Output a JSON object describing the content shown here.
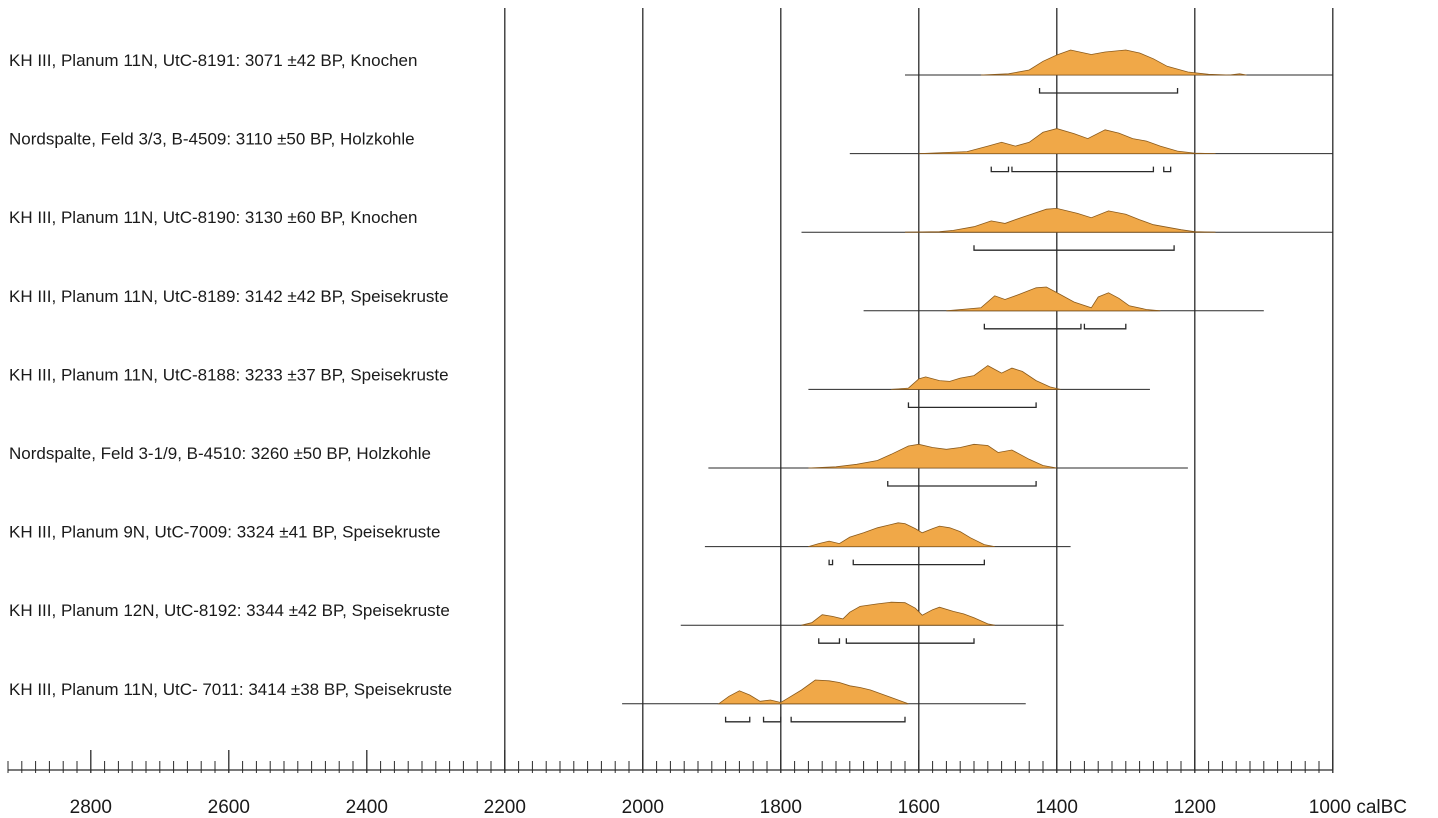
{
  "chart_data": {
    "type": "area",
    "x_axis": {
      "unit": "calBC",
      "range": [
        2920,
        1000
      ],
      "major_ticks": [
        2800,
        2600,
        2400,
        2200,
        2000,
        1800,
        1600,
        1400,
        1200,
        1000
      ],
      "tick_labels": [
        "2800",
        "2600",
        "2400",
        "2200",
        "2000",
        "1800",
        "1600",
        "1400",
        "1200",
        "1000 calBC"
      ],
      "gridlines": [
        2200,
        2000,
        1800,
        1600,
        1400,
        1200,
        1000
      ]
    },
    "fill_color": "#f0a848",
    "line_color": "#2a2a2a",
    "samples": [
      {
        "label": "KH III, Planum 11N, UtC-8191: 3071 ±42 BP, Knochen",
        "baseline_range": [
          1620,
          1000
        ],
        "density": [
          [
            1510,
            0
          ],
          [
            1470,
            0.05
          ],
          [
            1440,
            0.2
          ],
          [
            1420,
            0.55
          ],
          [
            1400,
            0.8
          ],
          [
            1380,
            1
          ],
          [
            1350,
            0.82
          ],
          [
            1330,
            0.92
          ],
          [
            1300,
            1
          ],
          [
            1280,
            0.88
          ],
          [
            1260,
            0.65
          ],
          [
            1240,
            0.35
          ],
          [
            1210,
            0.12
          ],
          [
            1180,
            0.03
          ],
          [
            1150,
            0
          ],
          [
            1135,
            0.05
          ],
          [
            1125,
            0
          ]
        ],
        "range_bars": [
          [
            1425,
            1225
          ]
        ]
      },
      {
        "label": "Nordspalte, Feld 3/3, B-4509: 3110 ±50 BP, Holzkohle",
        "baseline_range": [
          1700,
          1000
        ],
        "density": [
          [
            1600,
            0
          ],
          [
            1530,
            0.08
          ],
          [
            1500,
            0.3
          ],
          [
            1480,
            0.45
          ],
          [
            1460,
            0.3
          ],
          [
            1440,
            0.45
          ],
          [
            1420,
            0.85
          ],
          [
            1400,
            1
          ],
          [
            1375,
            0.8
          ],
          [
            1355,
            0.6
          ],
          [
            1330,
            0.95
          ],
          [
            1310,
            0.82
          ],
          [
            1290,
            0.6
          ],
          [
            1270,
            0.5
          ],
          [
            1250,
            0.3
          ],
          [
            1225,
            0.1
          ],
          [
            1200,
            0.02
          ],
          [
            1170,
            0
          ]
        ],
        "range_bars": [
          [
            1495,
            1470
          ],
          [
            1465,
            1260
          ],
          [
            1245,
            1235
          ]
        ]
      },
      {
        "label": "KH III, Planum 11N, UtC-8190: 3130 ±60 BP, Knochen",
        "baseline_range": [
          1770,
          1000
        ],
        "density": [
          [
            1620,
            0
          ],
          [
            1570,
            0.02
          ],
          [
            1550,
            0.07
          ],
          [
            1520,
            0.22
          ],
          [
            1495,
            0.45
          ],
          [
            1475,
            0.35
          ],
          [
            1450,
            0.6
          ],
          [
            1415,
            0.92
          ],
          [
            1400,
            0.95
          ],
          [
            1370,
            0.75
          ],
          [
            1350,
            0.58
          ],
          [
            1325,
            0.85
          ],
          [
            1300,
            0.72
          ],
          [
            1280,
            0.5
          ],
          [
            1260,
            0.3
          ],
          [
            1240,
            0.2
          ],
          [
            1220,
            0.1
          ],
          [
            1200,
            0.02
          ],
          [
            1170,
            0
          ]
        ],
        "range_bars": [
          [
            1520,
            1230
          ]
        ]
      },
      {
        "label": "KH III, Planum 11N, UtC-8189: 3142 ±42 BP, Speisekruste",
        "baseline_range": [
          1680,
          1100
        ],
        "density": [
          [
            1560,
            0
          ],
          [
            1510,
            0.12
          ],
          [
            1490,
            0.6
          ],
          [
            1475,
            0.45
          ],
          [
            1455,
            0.65
          ],
          [
            1430,
            0.92
          ],
          [
            1415,
            0.95
          ],
          [
            1395,
            0.65
          ],
          [
            1375,
            0.35
          ],
          [
            1350,
            0.12
          ],
          [
            1340,
            0.55
          ],
          [
            1325,
            0.72
          ],
          [
            1310,
            0.5
          ],
          [
            1295,
            0.2
          ],
          [
            1270,
            0.05
          ],
          [
            1250,
            0
          ]
        ],
        "range_bars": [
          [
            1505,
            1365
          ],
          [
            1360,
            1300
          ]
        ]
      },
      {
        "label": "KH III, Planum 11N, UtC-8188: 3233 ±37 BP, Speisekruste",
        "baseline_range": [
          1760,
          1265
        ],
        "density": [
          [
            1640,
            0
          ],
          [
            1615,
            0.05
          ],
          [
            1600,
            0.42
          ],
          [
            1590,
            0.5
          ],
          [
            1570,
            0.35
          ],
          [
            1555,
            0.32
          ],
          [
            1540,
            0.45
          ],
          [
            1520,
            0.55
          ],
          [
            1500,
            0.95
          ],
          [
            1490,
            0.8
          ],
          [
            1480,
            0.65
          ],
          [
            1465,
            0.85
          ],
          [
            1450,
            0.72
          ],
          [
            1430,
            0.35
          ],
          [
            1410,
            0.1
          ],
          [
            1395,
            0
          ]
        ],
        "range_bars": [
          [
            1615,
            1430
          ]
        ]
      },
      {
        "label": "Nordspalte, Feld 3-1/9, B-4510: 3260 ±50 BP, Holzkohle",
        "baseline_range": [
          1905,
          1210
        ],
        "density": [
          [
            1760,
            0
          ],
          [
            1720,
            0.05
          ],
          [
            1690,
            0.15
          ],
          [
            1660,
            0.3
          ],
          [
            1640,
            0.55
          ],
          [
            1615,
            0.88
          ],
          [
            1600,
            0.95
          ],
          [
            1580,
            0.82
          ],
          [
            1560,
            0.75
          ],
          [
            1540,
            0.82
          ],
          [
            1520,
            0.95
          ],
          [
            1500,
            0.9
          ],
          [
            1485,
            0.62
          ],
          [
            1465,
            0.72
          ],
          [
            1440,
            0.35
          ],
          [
            1420,
            0.1
          ],
          [
            1400,
            0
          ]
        ],
        "range_bars": [
          [
            1645,
            1430
          ]
        ]
      },
      {
        "label": "KH III, Planum 9N, UtC-7009: 3324 ±41 BP, Speisekruste",
        "baseline_range": [
          1910,
          1380
        ],
        "density": [
          [
            1760,
            0
          ],
          [
            1745,
            0.12
          ],
          [
            1730,
            0.22
          ],
          [
            1715,
            0.12
          ],
          [
            1700,
            0.38
          ],
          [
            1680,
            0.55
          ],
          [
            1660,
            0.75
          ],
          [
            1630,
            0.95
          ],
          [
            1620,
            0.92
          ],
          [
            1605,
            0.72
          ],
          [
            1595,
            0.55
          ],
          [
            1580,
            0.72
          ],
          [
            1570,
            0.82
          ],
          [
            1555,
            0.75
          ],
          [
            1540,
            0.6
          ],
          [
            1525,
            0.35
          ],
          [
            1505,
            0.08
          ],
          [
            1490,
            0
          ]
        ],
        "range_bars": [
          [
            1730,
            1725
          ],
          [
            1695,
            1505
          ]
        ]
      },
      {
        "label": "KH III, Planum 12N, UtC-8192: 3344 ±42 BP, Speisekruste",
        "baseline_range": [
          1945,
          1390
        ],
        "density": [
          [
            1770,
            0
          ],
          [
            1755,
            0.1
          ],
          [
            1740,
            0.42
          ],
          [
            1725,
            0.35
          ],
          [
            1710,
            0.25
          ],
          [
            1700,
            0.52
          ],
          [
            1685,
            0.75
          ],
          [
            1660,
            0.85
          ],
          [
            1640,
            0.92
          ],
          [
            1620,
            0.9
          ],
          [
            1605,
            0.68
          ],
          [
            1595,
            0.4
          ],
          [
            1580,
            0.62
          ],
          [
            1570,
            0.72
          ],
          [
            1550,
            0.55
          ],
          [
            1535,
            0.45
          ],
          [
            1520,
            0.3
          ],
          [
            1500,
            0.05
          ],
          [
            1490,
            0
          ]
        ],
        "range_bars": [
          [
            1745,
            1715
          ],
          [
            1705,
            1520
          ]
        ]
      },
      {
        "label": "KH III, Planum 11N, UtC- 7011: 3414 ±38 BP, Speisekruste",
        "baseline_range": [
          2030,
          1445
        ],
        "density": [
          [
            1890,
            0
          ],
          [
            1875,
            0.3
          ],
          [
            1860,
            0.52
          ],
          [
            1845,
            0.35
          ],
          [
            1830,
            0.1
          ],
          [
            1815,
            0.15
          ],
          [
            1800,
            0.05
          ],
          [
            1790,
            0.22
          ],
          [
            1770,
            0.55
          ],
          [
            1750,
            0.95
          ],
          [
            1730,
            0.92
          ],
          [
            1715,
            0.85
          ],
          [
            1700,
            0.72
          ],
          [
            1685,
            0.65
          ],
          [
            1670,
            0.55
          ],
          [
            1650,
            0.35
          ],
          [
            1630,
            0.15
          ],
          [
            1615,
            0
          ]
        ],
        "range_bars": [
          [
            1880,
            1845
          ],
          [
            1825,
            1800
          ],
          [
            1785,
            1620
          ]
        ]
      }
    ]
  }
}
